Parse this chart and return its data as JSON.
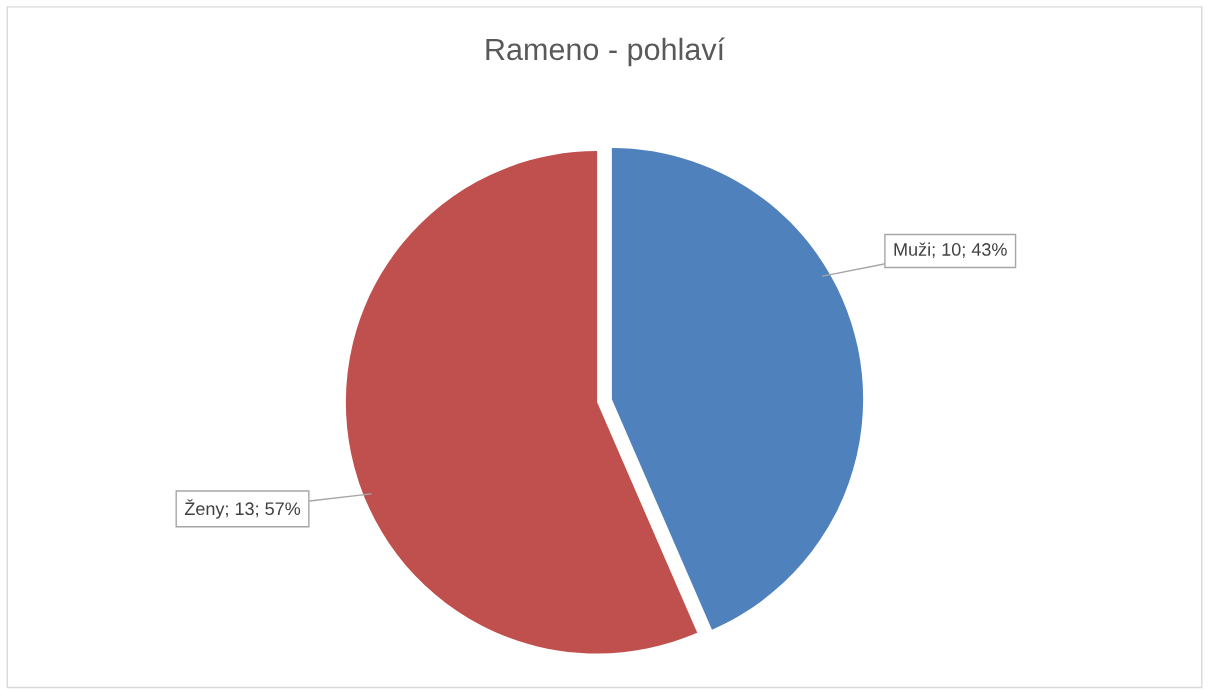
{
  "chart_data": {
    "type": "pie",
    "title": "Rameno - pohlaví",
    "categories": [
      "Muži",
      "Ženy"
    ],
    "values": [
      10,
      13
    ],
    "colors": [
      "#4f81bd",
      "#c0504d"
    ],
    "value_labels": [
      "10; 43%",
      "13; 57%"
    ],
    "legend": false
  }
}
